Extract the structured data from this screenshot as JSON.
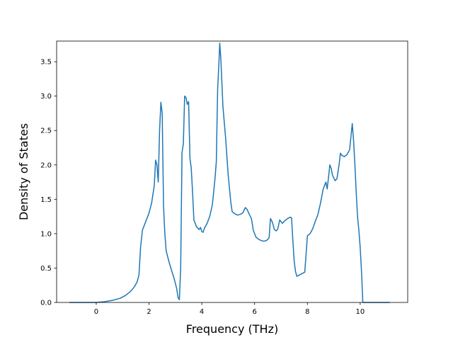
{
  "chart_data": {
    "type": "line",
    "title": "",
    "xlabel": "Frequency (THz)",
    "ylabel": "Density of States",
    "xlim": [
      -1.5,
      11.8
    ],
    "ylim": [
      0.0,
      3.8
    ],
    "x_ticks": [
      0,
      2,
      4,
      6,
      8,
      10
    ],
    "y_ticks": [
      0.0,
      0.5,
      1.0,
      1.5,
      2.0,
      2.5,
      3.0,
      3.5
    ],
    "x_tick_labels": [
      "0",
      "2",
      "4",
      "6",
      "8",
      "10"
    ],
    "y_tick_labels": [
      "0.0",
      "0.5",
      "1.0",
      "1.5",
      "2.0",
      "2.5",
      "3.0",
      "3.5"
    ],
    "grid": false,
    "legend": "none",
    "colors": {
      "line": "#1f77b4",
      "axes": "#000000",
      "background": "#ffffff"
    },
    "series": [
      {
        "points": [
          [
            -1.0,
            0.0
          ],
          [
            0.0,
            0.0
          ],
          [
            0.3,
            0.01
          ],
          [
            0.6,
            0.03
          ],
          [
            0.9,
            0.06
          ],
          [
            1.1,
            0.1
          ],
          [
            1.3,
            0.16
          ],
          [
            1.45,
            0.23
          ],
          [
            1.55,
            0.3
          ],
          [
            1.62,
            0.4
          ],
          [
            1.68,
            0.8
          ],
          [
            1.75,
            1.05
          ],
          [
            1.85,
            1.15
          ],
          [
            2.0,
            1.3
          ],
          [
            2.1,
            1.45
          ],
          [
            2.2,
            1.7
          ],
          [
            2.25,
            2.07
          ],
          [
            2.3,
            2.0
          ],
          [
            2.35,
            1.75
          ],
          [
            2.4,
            2.5
          ],
          [
            2.45,
            2.91
          ],
          [
            2.5,
            2.75
          ],
          [
            2.55,
            1.4
          ],
          [
            2.6,
            1.0
          ],
          [
            2.65,
            0.75
          ],
          [
            2.75,
            0.6
          ],
          [
            2.85,
            0.47
          ],
          [
            2.95,
            0.35
          ],
          [
            3.05,
            0.2
          ],
          [
            3.1,
            0.07
          ],
          [
            3.15,
            0.04
          ],
          [
            3.2,
            0.5
          ],
          [
            3.25,
            2.18
          ],
          [
            3.3,
            2.3
          ],
          [
            3.35,
            3.0
          ],
          [
            3.4,
            2.98
          ],
          [
            3.45,
            2.88
          ],
          [
            3.5,
            2.92
          ],
          [
            3.55,
            2.1
          ],
          [
            3.6,
            1.95
          ],
          [
            3.65,
            1.6
          ],
          [
            3.7,
            1.2
          ],
          [
            3.8,
            1.1
          ],
          [
            3.9,
            1.06
          ],
          [
            3.95,
            1.09
          ],
          [
            4.0,
            1.03
          ],
          [
            4.05,
            1.02
          ],
          [
            4.1,
            1.08
          ],
          [
            4.2,
            1.15
          ],
          [
            4.3,
            1.25
          ],
          [
            4.4,
            1.42
          ],
          [
            4.5,
            1.8
          ],
          [
            4.55,
            2.05
          ],
          [
            4.6,
            3.1
          ],
          [
            4.65,
            3.5
          ],
          [
            4.68,
            3.77
          ],
          [
            4.72,
            3.55
          ],
          [
            4.8,
            2.85
          ],
          [
            4.9,
            2.4
          ],
          [
            5.0,
            1.85
          ],
          [
            5.1,
            1.45
          ],
          [
            5.15,
            1.32
          ],
          [
            5.25,
            1.29
          ],
          [
            5.35,
            1.27
          ],
          [
            5.45,
            1.28
          ],
          [
            5.55,
            1.3
          ],
          [
            5.65,
            1.38
          ],
          [
            5.72,
            1.35
          ],
          [
            5.8,
            1.28
          ],
          [
            5.88,
            1.22
          ],
          [
            5.95,
            1.05
          ],
          [
            6.05,
            0.95
          ],
          [
            6.15,
            0.92
          ],
          [
            6.25,
            0.9
          ],
          [
            6.35,
            0.89
          ],
          [
            6.45,
            0.9
          ],
          [
            6.55,
            0.94
          ],
          [
            6.6,
            1.22
          ],
          [
            6.67,
            1.17
          ],
          [
            6.75,
            1.06
          ],
          [
            6.82,
            1.04
          ],
          [
            6.88,
            1.07
          ],
          [
            6.95,
            1.2
          ],
          [
            7.05,
            1.15
          ],
          [
            7.15,
            1.19
          ],
          [
            7.25,
            1.22
          ],
          [
            7.35,
            1.24
          ],
          [
            7.4,
            1.23
          ],
          [
            7.45,
            0.9
          ],
          [
            7.5,
            0.6
          ],
          [
            7.55,
            0.45
          ],
          [
            7.6,
            0.38
          ],
          [
            7.7,
            0.4
          ],
          [
            7.8,
            0.42
          ],
          [
            7.9,
            0.44
          ],
          [
            7.95,
            0.7
          ],
          [
            8.0,
            0.97
          ],
          [
            8.1,
            1.0
          ],
          [
            8.2,
            1.07
          ],
          [
            8.3,
            1.18
          ],
          [
            8.4,
            1.28
          ],
          [
            8.5,
            1.45
          ],
          [
            8.6,
            1.65
          ],
          [
            8.7,
            1.75
          ],
          [
            8.75,
            1.65
          ],
          [
            8.8,
            1.82
          ],
          [
            8.85,
            2.0
          ],
          [
            8.9,
            1.95
          ],
          [
            8.95,
            1.85
          ],
          [
            9.05,
            1.77
          ],
          [
            9.12,
            1.8
          ],
          [
            9.2,
            2.0
          ],
          [
            9.25,
            2.17
          ],
          [
            9.3,
            2.14
          ],
          [
            9.4,
            2.12
          ],
          [
            9.5,
            2.15
          ],
          [
            9.6,
            2.22
          ],
          [
            9.7,
            2.6
          ],
          [
            9.75,
            2.35
          ],
          [
            9.8,
            2.0
          ],
          [
            9.85,
            1.6
          ],
          [
            9.9,
            1.25
          ],
          [
            9.95,
            1.05
          ],
          [
            10.0,
            0.8
          ],
          [
            10.05,
            0.45
          ],
          [
            10.1,
            0.0
          ],
          [
            11.1,
            0.0
          ]
        ]
      }
    ]
  }
}
